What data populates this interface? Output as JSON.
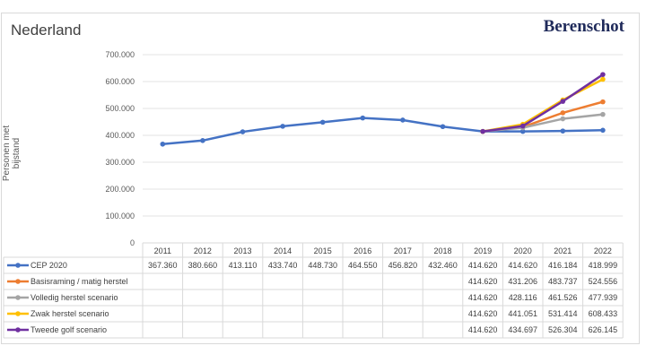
{
  "chart_data": {
    "type": "line",
    "title": "Nederland",
    "logo": "Berenschot",
    "ylabel": "Personen met bijstand",
    "xlabel": "",
    "ylim": [
      0,
      700000
    ],
    "yticks": [
      "0",
      "100.000",
      "200.000",
      "300.000",
      "400.000",
      "500.000",
      "600.000",
      "700.000"
    ],
    "grid": true,
    "legend": "data table below chart",
    "categories": [
      "2011",
      "2012",
      "2013",
      "2014",
      "2015",
      "2016",
      "2017",
      "2018",
      "2019",
      "2020",
      "2021",
      "2022"
    ],
    "series": [
      {
        "name": "CEP 2020",
        "color": "#4472c4",
        "values": [
          367360,
          380660,
          413110,
          433740,
          448730,
          464550,
          456820,
          432460,
          414620,
          414620,
          416184,
          418999
        ],
        "labels": [
          "367.360",
          "380.660",
          "413.110",
          "433.740",
          "448.730",
          "464.550",
          "456.820",
          "432.460",
          "414.620",
          "414.620",
          "416.184",
          "418.999"
        ]
      },
      {
        "name": "Basisraming / matig herstel",
        "color": "#ed7d31",
        "values": [
          null,
          null,
          null,
          null,
          null,
          null,
          null,
          null,
          414620,
          431206,
          483737,
          524556
        ],
        "labels": [
          "",
          "",
          "",
          "",
          "",
          "",
          "",
          "",
          "414.620",
          "431.206",
          "483.737",
          "524.556"
        ]
      },
      {
        "name": "Volledig herstel scenario",
        "color": "#a5a5a5",
        "values": [
          null,
          null,
          null,
          null,
          null,
          null,
          null,
          null,
          414620,
          428116,
          461526,
          477939
        ],
        "labels": [
          "",
          "",
          "",
          "",
          "",
          "",
          "",
          "",
          "414.620",
          "428.116",
          "461.526",
          "477.939"
        ]
      },
      {
        "name": "Zwak herstel scenario",
        "color": "#ffc000",
        "values": [
          null,
          null,
          null,
          null,
          null,
          null,
          null,
          null,
          414620,
          441051,
          531414,
          608433
        ],
        "labels": [
          "",
          "",
          "",
          "",
          "",
          "",
          "",
          "",
          "414.620",
          "441.051",
          "531.414",
          "608.433"
        ]
      },
      {
        "name": "Tweede golf scenario",
        "color": "#7030a0",
        "values": [
          null,
          null,
          null,
          null,
          null,
          null,
          null,
          null,
          414620,
          434697,
          526304,
          626145
        ],
        "labels": [
          "",
          "",
          "",
          "",
          "",
          "",
          "",
          "",
          "414.620",
          "434.697",
          "526.304",
          "626.145"
        ]
      }
    ]
  }
}
